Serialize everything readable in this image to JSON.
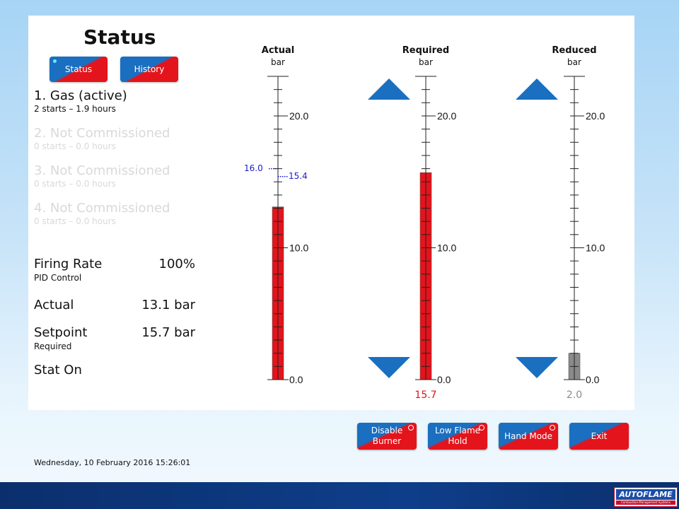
{
  "page_title": "Status",
  "tabs": [
    {
      "label": "Status",
      "active": true
    },
    {
      "label": "History",
      "active": false
    }
  ],
  "burners": [
    {
      "name": "1. Gas (active)",
      "info": "2 starts – 1.9 hours",
      "active": true
    },
    {
      "name": "2. Not Commissioned",
      "info": "0 starts – 0.0 hours",
      "active": false
    },
    {
      "name": "3. Not Commissioned",
      "info": "0 starts – 0.0 hours",
      "active": false
    },
    {
      "name": "4. Not Commissioned",
      "info": "0 starts – 0.0 hours",
      "active": false
    }
  ],
  "readings": {
    "firing_rate": {
      "label": "Firing Rate",
      "value": "100%",
      "sub": "PID Control"
    },
    "actual": {
      "label": "Actual",
      "value": "13.1 bar"
    },
    "setpoint": {
      "label": "Setpoint",
      "value": "15.7 bar",
      "sub": "Required"
    },
    "stat": {
      "label": "Stat On"
    }
  },
  "scale": {
    "min": 0,
    "max": 23,
    "labels": [
      "0.0",
      "10.0",
      "20.0"
    ],
    "label_values": [
      0,
      10,
      20
    ],
    "minor_step": 1
  },
  "gauges": {
    "actual": {
      "title": "Actual",
      "unit": "bar",
      "value": 13.1,
      "color": "#e3141b",
      "upper_marker": {
        "label": "16.0",
        "value": 16.0
      },
      "lower_marker": {
        "label": "15.4",
        "value": 15.4
      }
    },
    "required": {
      "title": "Required",
      "unit": "bar",
      "value": 15.7,
      "bottom_label": "15.7",
      "color": "#e3141b"
    },
    "reduced": {
      "title": "Reduced",
      "unit": "bar",
      "value": 2.0,
      "bottom_label": "2.0",
      "color": "#8a8a8a"
    }
  },
  "colors": {
    "accent_blue": "#1a6fc0",
    "accent_red": "#e3141b",
    "marker_blue": "#1a1acc",
    "reduced_grey": "#8a8a8a"
  },
  "icons": {
    "arrow_up": "triangle-up-icon",
    "arrow_down": "triangle-down-icon",
    "clock": "clock-icon"
  },
  "actions": [
    {
      "label": "Disable\nBurner"
    },
    {
      "label": "Low Flame\nHold"
    },
    {
      "label": "Hand Mode"
    },
    {
      "label": "Exit"
    }
  ],
  "datetime": "Wednesday, 10 February 2016  15:26:01",
  "brand": {
    "name": "AUTOFLAME",
    "tagline": "Combustion Management Systems"
  }
}
